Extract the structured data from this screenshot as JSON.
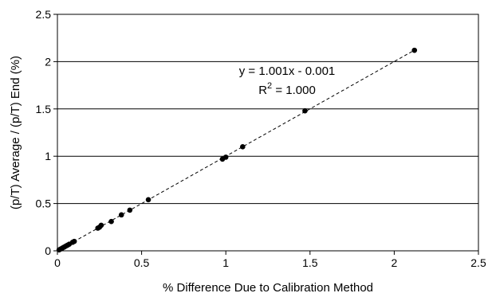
{
  "chart_data": {
    "type": "scatter",
    "title": "",
    "xlabel": "% Difference Due to Calibration Method",
    "ylabel": "(p/T) Average / (p/T) End (%)",
    "xlim": [
      0,
      2.5
    ],
    "ylim": [
      0,
      2.5
    ],
    "x_ticks": [
      "0",
      "0.5",
      "1",
      "1.5",
      "2",
      "2.5"
    ],
    "y_ticks": [
      "0",
      "0.5",
      "1",
      "1.5",
      "2",
      "2.5"
    ],
    "grid": "horizontal",
    "legend": "none",
    "series": [
      {
        "points": [
          {
            "x": 0.01,
            "y": 0.01
          },
          {
            "x": 0.02,
            "y": 0.02
          },
          {
            "x": 0.03,
            "y": 0.03
          },
          {
            "x": 0.04,
            "y": 0.04
          },
          {
            "x": 0.05,
            "y": 0.05
          },
          {
            "x": 0.06,
            "y": 0.06
          },
          {
            "x": 0.07,
            "y": 0.07
          },
          {
            "x": 0.09,
            "y": 0.09
          },
          {
            "x": 0.1,
            "y": 0.1
          },
          {
            "x": 0.24,
            "y": 0.24
          },
          {
            "x": 0.25,
            "y": 0.25
          },
          {
            "x": 0.26,
            "y": 0.27
          },
          {
            "x": 0.32,
            "y": 0.31
          },
          {
            "x": 0.38,
            "y": 0.38
          },
          {
            "x": 0.43,
            "y": 0.43
          },
          {
            "x": 0.54,
            "y": 0.54
          },
          {
            "x": 0.98,
            "y": 0.97
          },
          {
            "x": 1.0,
            "y": 0.99
          },
          {
            "x": 1.1,
            "y": 1.1
          },
          {
            "x": 1.47,
            "y": 1.48
          },
          {
            "x": 2.12,
            "y": 2.12
          }
        ],
        "color": "#000000"
      }
    ],
    "trendline": {
      "slope": 1.001,
      "intercept": -0.001,
      "style": "dashed",
      "color": "#000000"
    },
    "annotations": {
      "equation": "y = 1.001x - 0.001",
      "r2_prefix": "R",
      "r2_sup": "2",
      "r2_value": " = 1.000"
    }
  }
}
